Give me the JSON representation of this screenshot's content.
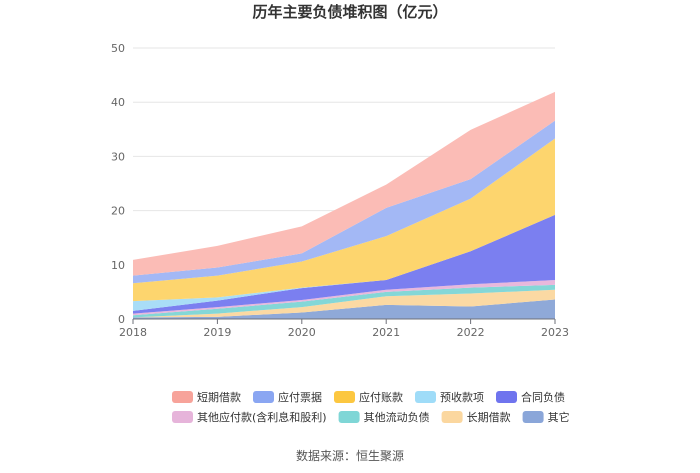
{
  "chart_data": {
    "type": "area",
    "stacked": true,
    "title": "历年主要负债堆积图（亿元）",
    "x": [
      "2018",
      "2019",
      "2020",
      "2021",
      "2022",
      "2023"
    ],
    "ylim": [
      0,
      50
    ],
    "yticks": [
      0,
      10,
      20,
      30,
      40,
      50
    ],
    "grid": true,
    "series": [
      {
        "name": "其它",
        "color": "#8fa9d8",
        "values": [
          0.3,
          0.4,
          1.2,
          2.6,
          2.3,
          3.6
        ]
      },
      {
        "name": "长期借款",
        "color": "#fbd9a3",
        "values": [
          0.0,
          0.6,
          1.0,
          1.6,
          2.4,
          1.8
        ]
      },
      {
        "name": "其他流动负债",
        "color": "#84d7d7",
        "values": [
          0.4,
          0.9,
          1.0,
          0.8,
          1.1,
          0.9
        ]
      },
      {
        "name": "其他应付款(含利息和股利)",
        "color": "#e8b8dc",
        "values": [
          0.3,
          0.3,
          0.3,
          0.4,
          0.6,
          0.9
        ]
      },
      {
        "name": "合同负债",
        "color": "#7b7ff0",
        "values": [
          0.5,
          1.2,
          2.2,
          1.8,
          6.1,
          12.0
        ]
      },
      {
        "name": "预收款项",
        "color": "#a9ddf7",
        "values": [
          1.8,
          0.6,
          0.1,
          0.0,
          0.0,
          0.0
        ]
      },
      {
        "name": "应付账款",
        "color": "#fdd56e",
        "values": [
          3.3,
          4.0,
          4.8,
          8.1,
          9.7,
          14.1
        ]
      },
      {
        "name": "应付票据",
        "color": "#a3b8f5",
        "values": [
          1.4,
          1.5,
          1.5,
          5.2,
          3.6,
          3.3
        ]
      },
      {
        "name": "短期借款",
        "color": "#fbbcb6",
        "values": [
          2.9,
          4.0,
          5.0,
          4.3,
          9.1,
          5.3
        ]
      }
    ],
    "legend": [
      {
        "name": "短期借款",
        "color": "#f7a39a"
      },
      {
        "name": "应付票据",
        "color": "#8aa6f2"
      },
      {
        "name": "应付账款",
        "color": "#fcc740"
      },
      {
        "name": "预收款项",
        "color": "#9fdcf8"
      },
      {
        "name": "合同负债",
        "color": "#6f74ee"
      },
      {
        "name": "其他应付款(含利息和股利)",
        "color": "#e6b4da"
      },
      {
        "name": "其他流动负债",
        "color": "#7fd6d6"
      },
      {
        "name": "长期借款",
        "color": "#fbd79f"
      },
      {
        "name": "其它",
        "color": "#8aa6d9"
      }
    ],
    "source": "数据来源：恒生聚源"
  }
}
